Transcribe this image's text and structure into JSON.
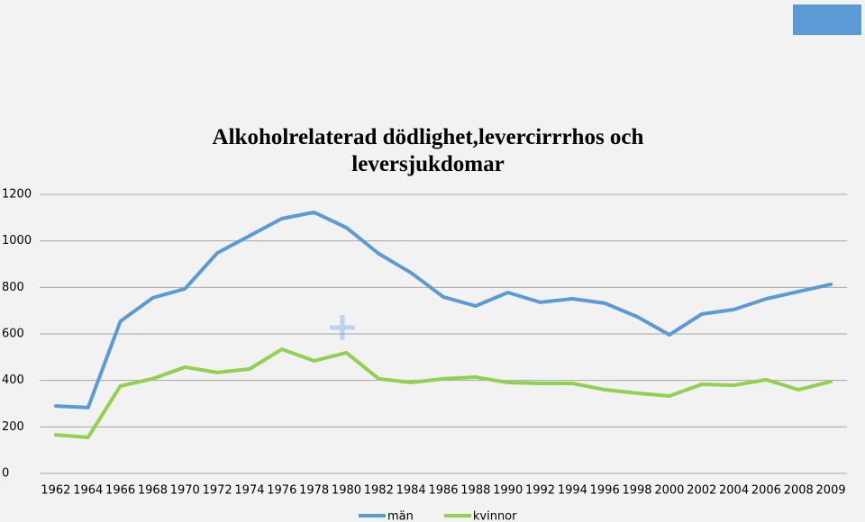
{
  "chart_data": {
    "type": "line",
    "title": "Alkoholrelaterad dödlighet,levercirrrhos och leversjukdomar",
    "categories": [
      "1962",
      "1964",
      "1966",
      "1968",
      "1970",
      "1972",
      "1974",
      "1976",
      "1978",
      "1980",
      "1982",
      "1984",
      "1986",
      "1988",
      "1990",
      "1992",
      "1994",
      "1996",
      "1998",
      "2000",
      "2002",
      "2004",
      "2006",
      "2008",
      "2009"
    ],
    "series": [
      {
        "name": "män",
        "color": "#5b9bd5",
        "values": [
          290,
          283,
          654,
          755,
          794,
          948,
          1022,
          1096,
          1123,
          1057,
          945,
          863,
          759,
          720,
          778,
          736,
          751,
          732,
          674,
          596,
          685,
          705,
          751,
          782,
          813
        ]
      },
      {
        "name": "kvinnor",
        "color": "#92d050",
        "values": [
          166,
          155,
          376,
          407,
          457,
          434,
          449,
          534,
          484,
          519,
          407,
          391,
          407,
          414,
          391,
          387,
          387,
          360,
          345,
          333,
          383,
          379,
          403,
          360,
          395
        ]
      }
    ],
    "ylim": [
      0,
      1200
    ],
    "yticks": [
      0,
      200,
      400,
      600,
      800,
      1000,
      1200
    ],
    "grid": true,
    "legend": "bottom"
  }
}
